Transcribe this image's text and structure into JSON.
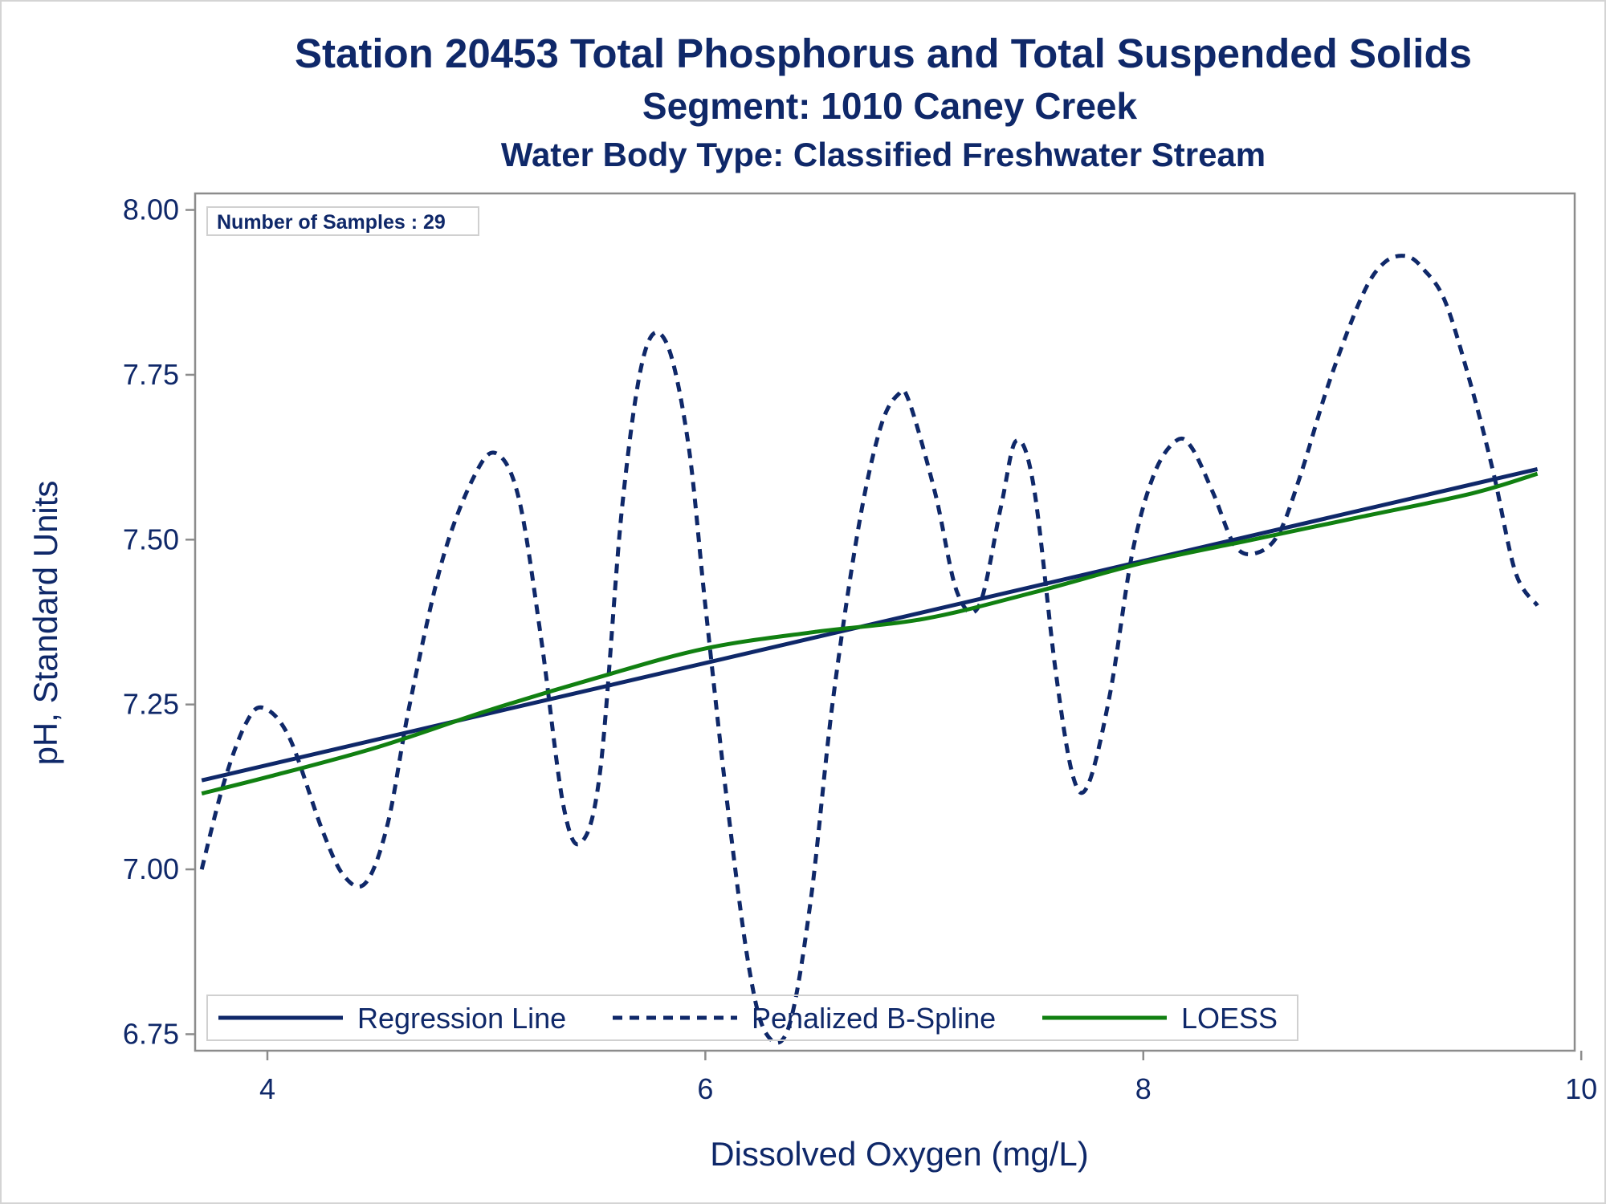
{
  "titles": {
    "line1": "Station 20453  Total Phosphorus and Total Suspended Solids",
    "line2": "Segment: 1010  Caney Creek",
    "line3": "Water Body Type: Classified Freshwater Stream"
  },
  "inset": {
    "text": "Number of Samples : 29"
  },
  "colors": {
    "text": "#0f2869",
    "regression": "#0f2869",
    "spline": "#0f2869",
    "loess": "#118011",
    "axis": "#8c8c8c"
  },
  "chart_data": {
    "type": "line",
    "xlabel": "Dissolved Oxygen (mg/L)",
    "ylabel": "pH, Standard Units",
    "xlim": [
      3.67,
      9.97
    ],
    "ylim": [
      6.725,
      8.025
    ],
    "x_ticks": [
      4,
      6,
      8,
      10
    ],
    "x_tick_labels": [
      "4",
      "6",
      "8",
      "10"
    ],
    "y_ticks": [
      6.75,
      7.0,
      7.25,
      7.5,
      7.75,
      8.0
    ],
    "y_tick_labels": [
      "6.75",
      "7.00",
      "7.25",
      "7.50",
      "7.75",
      "8.00"
    ],
    "legend_position": "bottom-inside",
    "series": [
      {
        "name": "Regression Line",
        "style": "solid",
        "x": [
          3.7,
          9.8
        ],
        "y": [
          7.135,
          7.607
        ]
      },
      {
        "name": "Penalized B-Spline",
        "style": "dashed",
        "x": [
          3.7,
          3.8,
          3.9,
          3.98,
          4.1,
          4.25,
          4.35,
          4.45,
          4.55,
          4.65,
          4.8,
          4.95,
          5.05,
          5.15,
          5.25,
          5.35,
          5.43,
          5.52,
          5.62,
          5.72,
          5.82,
          5.92,
          6.0,
          6.1,
          6.2,
          6.28,
          6.38,
          6.48,
          6.58,
          6.7,
          6.8,
          6.88,
          6.93,
          7.05,
          7.15,
          7.25,
          7.35,
          7.42,
          7.5,
          7.6,
          7.68,
          7.75,
          7.85,
          7.95,
          8.05,
          8.15,
          8.22,
          8.32,
          8.42,
          8.52,
          8.62,
          8.72,
          8.85,
          9.0,
          9.1,
          9.2,
          9.28,
          9.38,
          9.5,
          9.6,
          9.7,
          9.8
        ],
        "y": [
          7.0,
          7.13,
          7.22,
          7.245,
          7.2,
          7.06,
          6.99,
          6.98,
          7.07,
          7.25,
          7.47,
          7.6,
          7.63,
          7.56,
          7.35,
          7.1,
          7.04,
          7.15,
          7.55,
          7.78,
          7.8,
          7.65,
          7.4,
          7.1,
          6.85,
          6.75,
          6.76,
          6.95,
          7.25,
          7.52,
          7.67,
          7.72,
          7.71,
          7.57,
          7.42,
          7.4,
          7.55,
          7.65,
          7.58,
          7.3,
          7.14,
          7.13,
          7.27,
          7.48,
          7.6,
          7.65,
          7.64,
          7.57,
          7.49,
          7.48,
          7.51,
          7.6,
          7.74,
          7.87,
          7.92,
          7.93,
          7.91,
          7.86,
          7.73,
          7.6,
          7.45,
          7.4
        ]
      },
      {
        "name": "LOESS",
        "style": "solid",
        "x": [
          3.7,
          4.0,
          4.5,
          5.0,
          5.5,
          6.0,
          6.5,
          7.0,
          7.5,
          8.0,
          8.5,
          9.0,
          9.5,
          9.8
        ],
        "y": [
          7.115,
          7.14,
          7.185,
          7.24,
          7.29,
          7.335,
          7.36,
          7.38,
          7.42,
          7.465,
          7.5,
          7.535,
          7.57,
          7.6
        ]
      }
    ]
  }
}
